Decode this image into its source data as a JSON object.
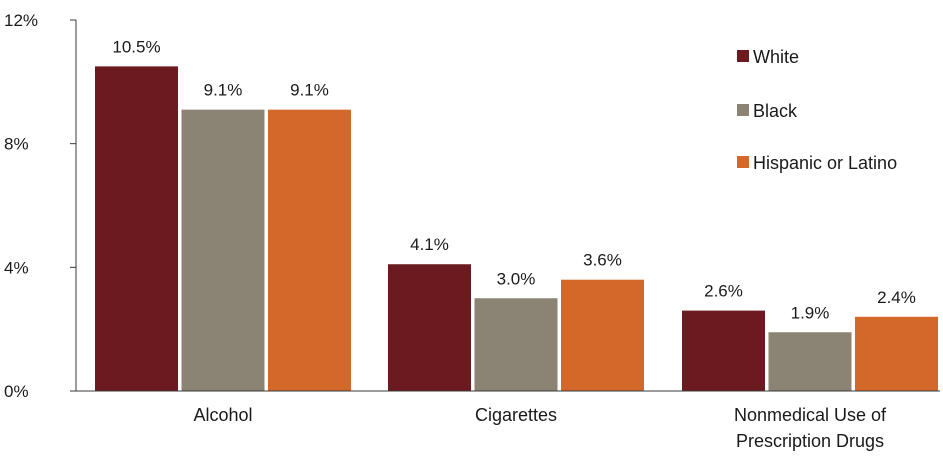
{
  "chart_data": {
    "type": "bar",
    "categories": [
      "Alcohol",
      "Cigarettes",
      "Nonmedical Use of Prescription Drugs"
    ],
    "category_label_lines": [
      [
        "Alcohol"
      ],
      [
        "Cigarettes"
      ],
      [
        "Nonmedical Use of",
        "Prescription Drugs"
      ]
    ],
    "series": [
      {
        "name": "White",
        "color": "#6b1a1f",
        "values": [
          10.5,
          4.1,
          2.6
        ],
        "labels": [
          "10.5%",
          "4.1%",
          "2.6%"
        ]
      },
      {
        "name": "Black",
        "color": "#8b8373",
        "values": [
          9.1,
          3.0,
          1.9
        ],
        "labels": [
          "9.1%",
          "3.0%",
          "1.9%"
        ]
      },
      {
        "name": "Hispanic or Latino",
        "color": "#d2692a",
        "values": [
          9.1,
          3.6,
          2.4
        ],
        "labels": [
          "9.1%",
          "3.6%",
          "2.4%"
        ]
      }
    ],
    "yticks": [
      0,
      4,
      8,
      12
    ],
    "ytick_labels": [
      "0%",
      "4%",
      "8%",
      "12%"
    ],
    "ylim": [
      0,
      12
    ],
    "grid": false,
    "legend_position": "top-right",
    "title": "",
    "xlabel": "",
    "ylabel": ""
  }
}
